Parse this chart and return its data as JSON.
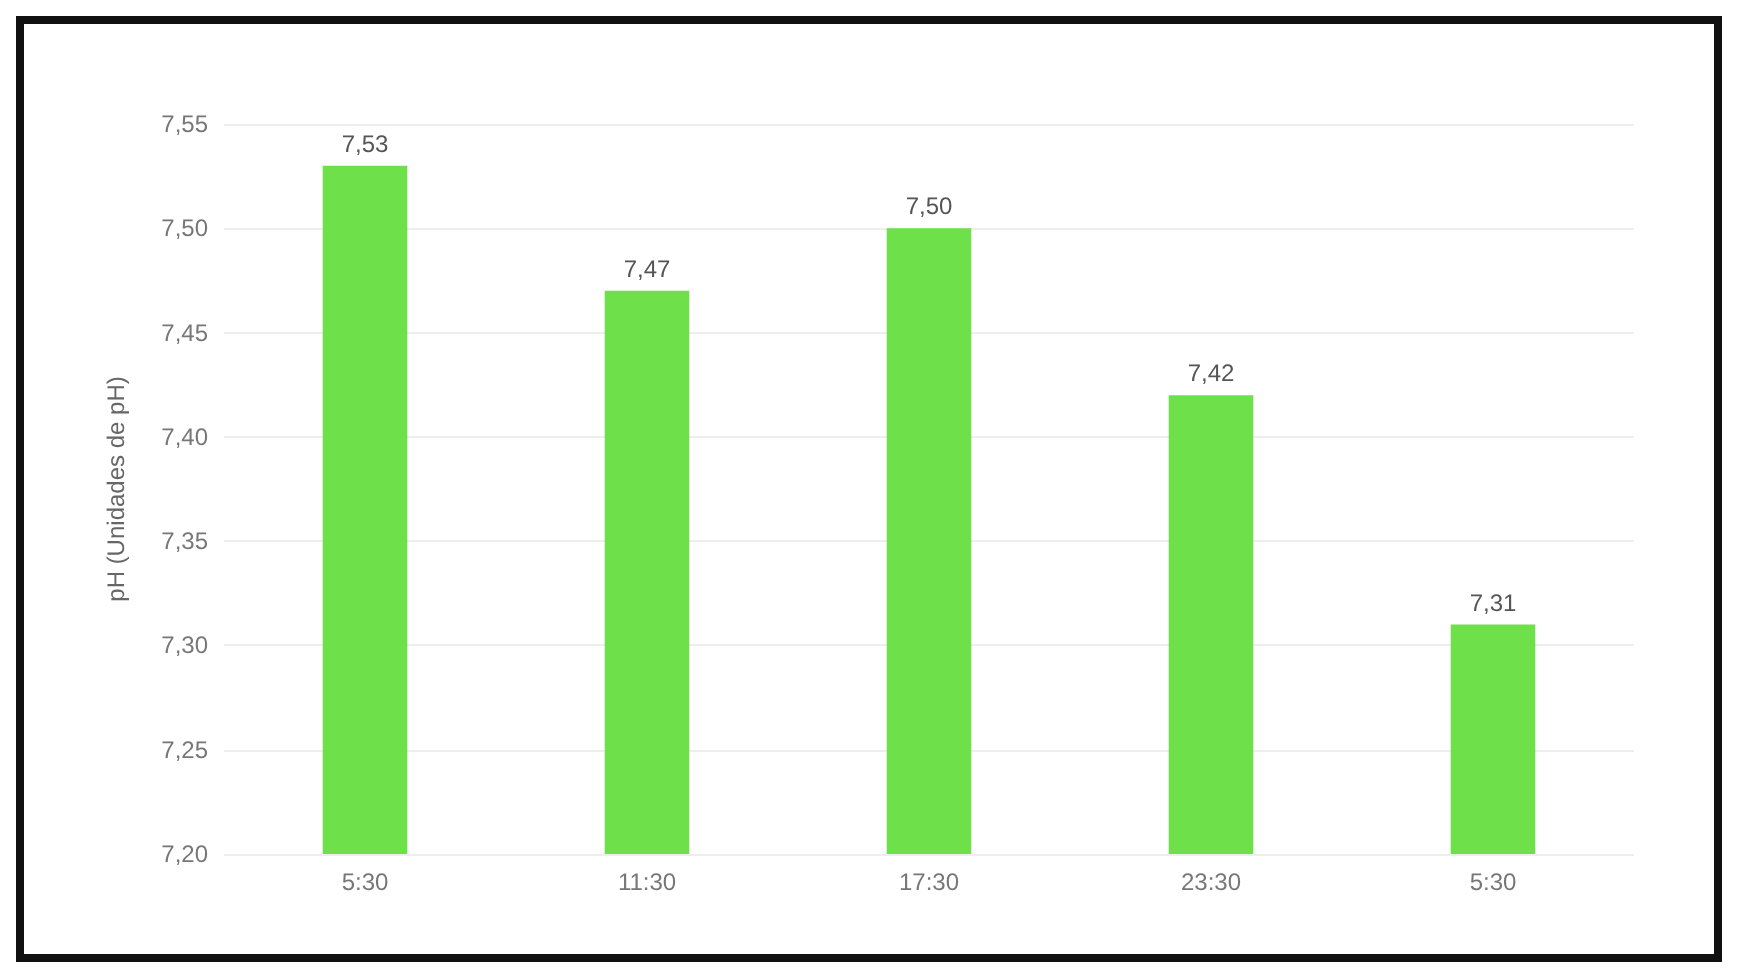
{
  "chart_data": {
    "type": "bar",
    "ylabel": "pH (Unidades de pH)",
    "categories": [
      "5:30",
      "11:30",
      "17:30",
      "23:30",
      "5:30"
    ],
    "values": [
      7.53,
      7.47,
      7.5,
      7.42,
      7.31
    ],
    "value_labels": [
      "7,53",
      "7,47",
      "7,50",
      "7,42",
      "7,31"
    ],
    "color": "#6ee04a",
    "ylim": [
      7.2,
      7.55
    ],
    "yticks": [
      {
        "value": 7.2,
        "label": "7,20"
      },
      {
        "value": 7.25,
        "label": "7,25"
      },
      {
        "value": 7.3,
        "label": "7,30"
      },
      {
        "value": 7.35,
        "label": "7,35"
      },
      {
        "value": 7.4,
        "label": "7,40"
      },
      {
        "value": 7.45,
        "label": "7,45"
      },
      {
        "value": 7.5,
        "label": "7,50"
      },
      {
        "value": 7.55,
        "label": "7,55"
      }
    ],
    "grid": "y"
  }
}
